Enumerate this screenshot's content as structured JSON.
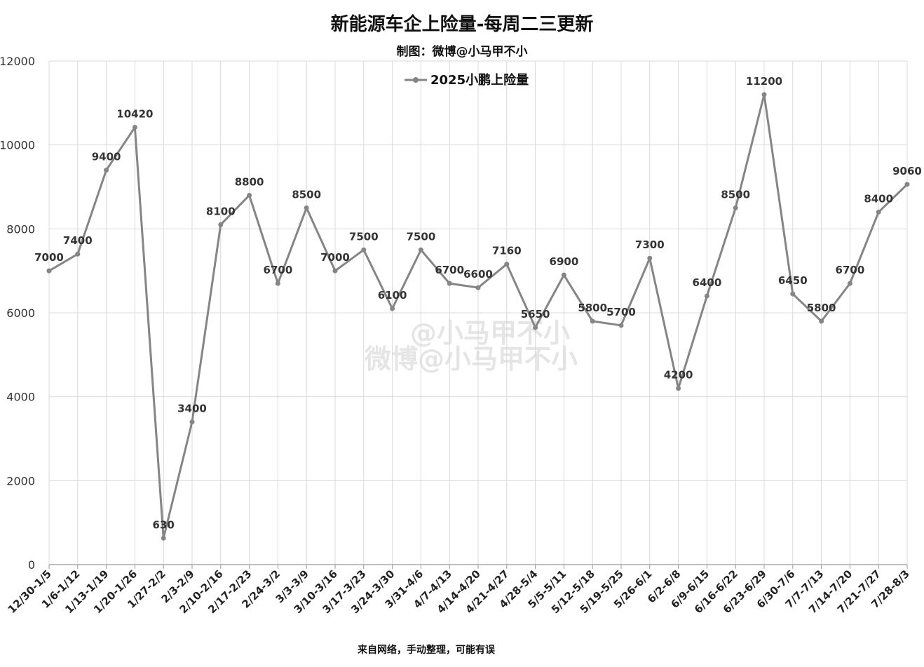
{
  "chart_data": {
    "type": "line",
    "title": "新能源车企上险量-每周二三更新",
    "subtitle": "制图：微博@小马甲不小",
    "footer": "来自网络，手动整理，可能有误",
    "watermark": [
      "@小马甲不小",
      "微博@小马甲不小"
    ],
    "categories": [
      "12/30-1/5",
      "1/6-1/12",
      "1/13-1/19",
      "1/20-1/26",
      "1/27-2/2",
      "2/3-2/9",
      "2/10-2/16",
      "2/17-2/23",
      "2/24-3/2",
      "3/3-3/9",
      "3/10-3/16",
      "3/17-3/23",
      "3/24-3/30",
      "3/31-4/6",
      "4/7-4/13",
      "4/14-4/20",
      "4/21-4/27",
      "4/28-5/4",
      "5/5-5/11",
      "5/12-5/18",
      "5/19-5/25",
      "5/26-6/1",
      "6/2-6/8",
      "6/9-6/15",
      "6/16-6/22",
      "6/23-6/29",
      "6/30-7/6",
      "7/7-7/13",
      "7/14-7/20",
      "7/21-7/27",
      "7/28-8/3"
    ],
    "series": [
      {
        "name": "2025小鹏上险量",
        "color": "#858585",
        "values": [
          7000,
          7400,
          9400,
          10420,
          630,
          3400,
          8100,
          8800,
          6700,
          8500,
          7000,
          7500,
          6100,
          7500,
          6700,
          6600,
          7160,
          5650,
          6900,
          5800,
          5700,
          7300,
          4200,
          6400,
          8500,
          11200,
          6450,
          5800,
          6700,
          8400,
          9060
        ]
      }
    ],
    "yticks": [
      0,
      2000,
      4000,
      6000,
      8000,
      10000,
      12000
    ],
    "ylim": [
      0,
      12000
    ],
    "grid": true,
    "legend_position": "top-center"
  }
}
